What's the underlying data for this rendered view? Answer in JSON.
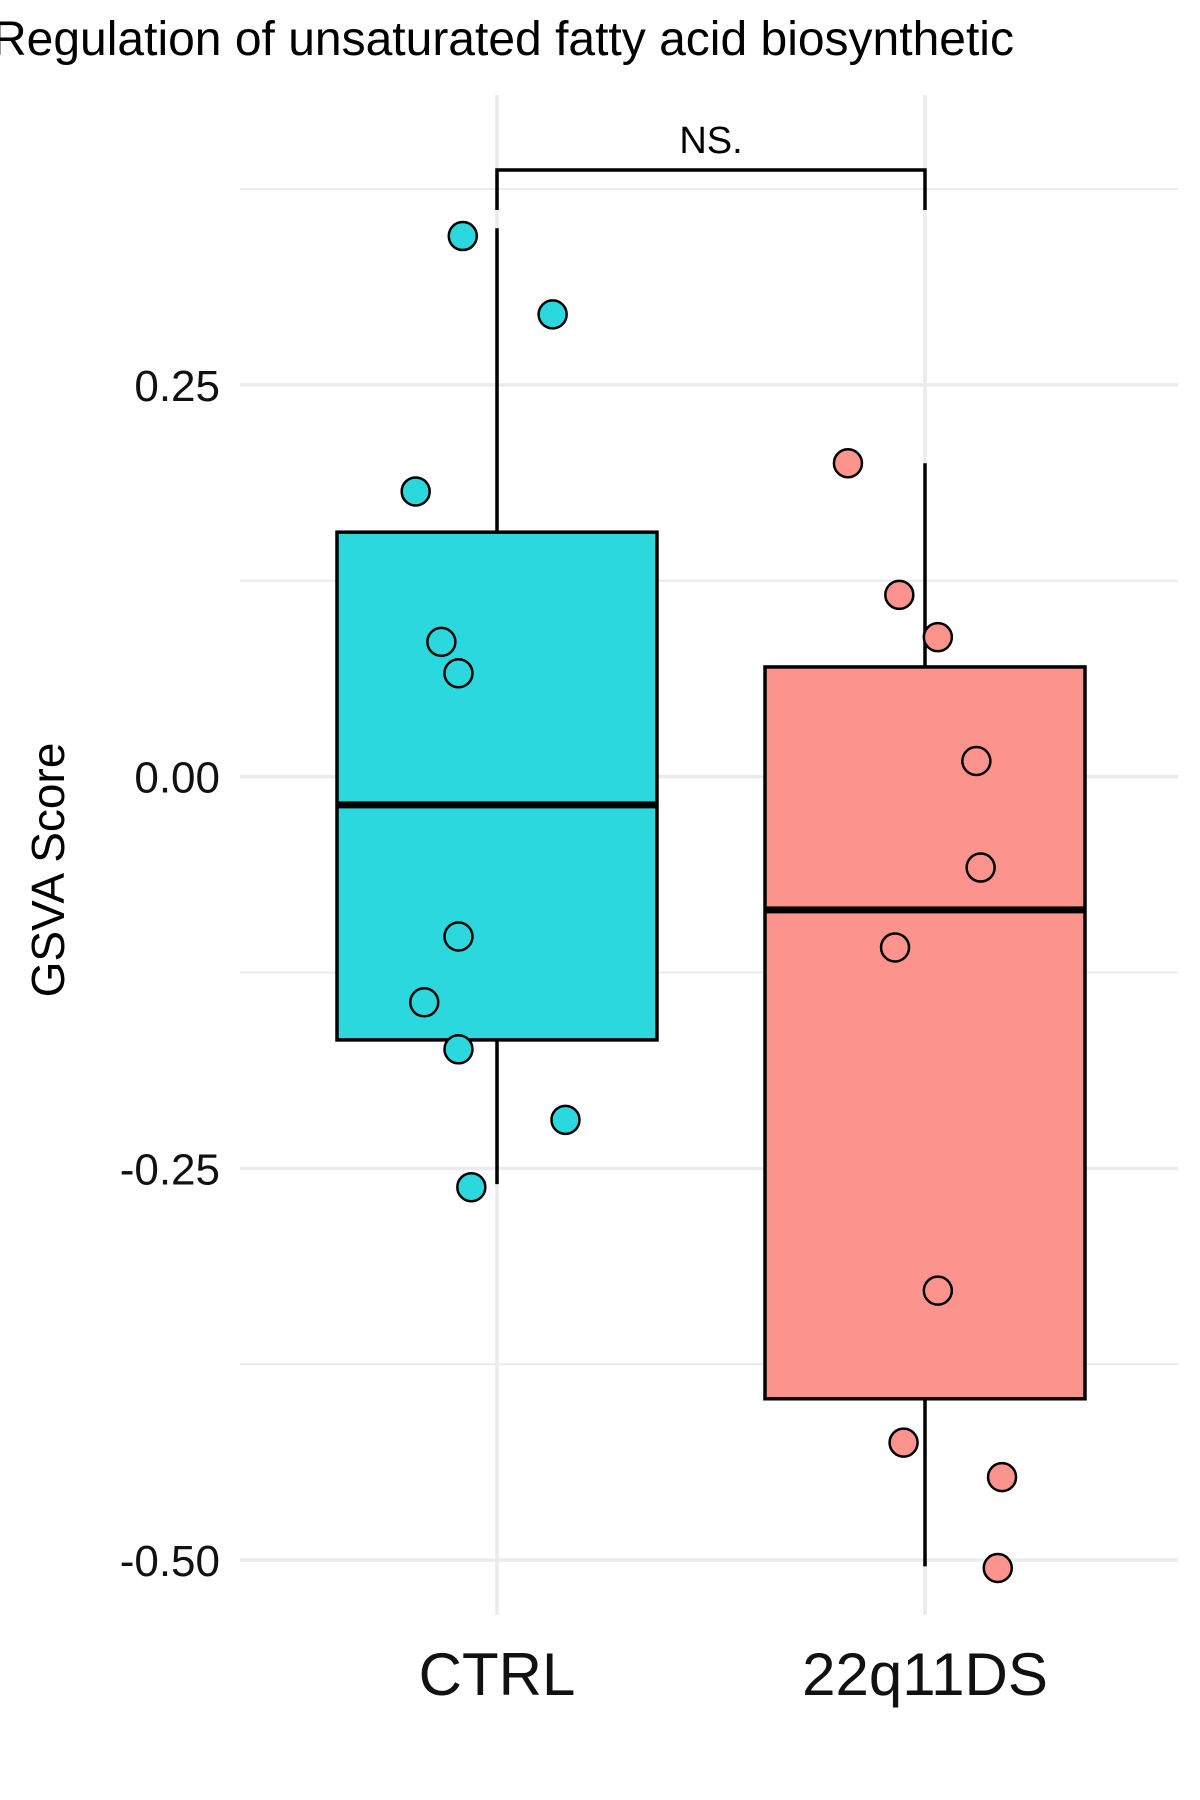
{
  "chart_data": {
    "type": "box",
    "title": "Regulation of unsaturated fatty acid biosynthetic",
    "xlabel": "",
    "ylabel": "GSVA Score",
    "ylim": [
      -0.535,
      0.435
    ],
    "yticks": [
      0.25,
      0.0,
      -0.25,
      -0.5
    ],
    "ytick_labels": [
      "0.25",
      "0.00",
      "-0.25",
      "-0.50"
    ],
    "grid": true,
    "categories": [
      "CTRL",
      "22q11DS"
    ],
    "significance": {
      "label": "NS.",
      "between": [
        "CTRL",
        "22q11DS"
      ]
    },
    "groups": [
      {
        "name": "CTRL",
        "color": "#2ad8de",
        "box": {
          "whisker_low": -0.26,
          "q1": -0.168,
          "median": -0.018,
          "q3": 0.156,
          "whisker_high": 0.35
        },
        "points": [
          {
            "jitter": -0.08,
            "y": 0.345
          },
          {
            "jitter": 0.13,
            "y": 0.295
          },
          {
            "jitter": -0.19,
            "y": 0.182
          },
          {
            "jitter": -0.13,
            "y": 0.086
          },
          {
            "jitter": -0.09,
            "y": 0.066
          },
          {
            "jitter": -0.09,
            "y": -0.102
          },
          {
            "jitter": -0.17,
            "y": -0.144
          },
          {
            "jitter": -0.09,
            "y": -0.174
          },
          {
            "jitter": 0.16,
            "y": -0.219
          },
          {
            "jitter": -0.06,
            "y": -0.262
          }
        ]
      },
      {
        "name": "22q11DS",
        "color": "#fc938d",
        "box": {
          "whisker_low": -0.504,
          "q1": -0.397,
          "median": -0.085,
          "q3": 0.07,
          "whisker_high": 0.2
        },
        "points": [
          {
            "jitter": -0.18,
            "y": 0.2
          },
          {
            "jitter": -0.06,
            "y": 0.116
          },
          {
            "jitter": 0.03,
            "y": 0.089
          },
          {
            "jitter": 0.12,
            "y": 0.01
          },
          {
            "jitter": 0.13,
            "y": -0.058
          },
          {
            "jitter": -0.07,
            "y": -0.109
          },
          {
            "jitter": 0.03,
            "y": -0.328
          },
          {
            "jitter": -0.05,
            "y": -0.425
          },
          {
            "jitter": 0.18,
            "y": -0.447
          },
          {
            "jitter": 0.17,
            "y": -0.505
          }
        ]
      }
    ]
  }
}
